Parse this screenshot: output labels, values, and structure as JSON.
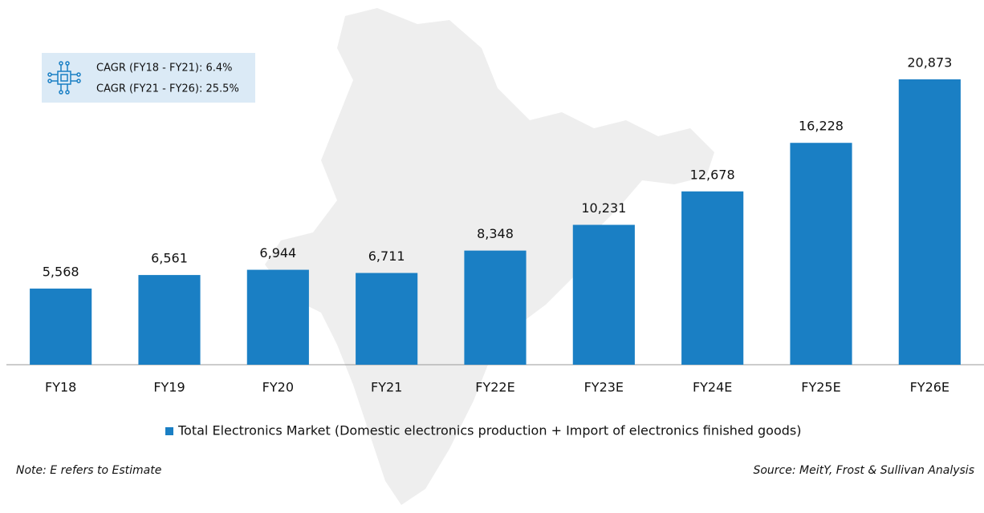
{
  "chart_data": {
    "type": "bar",
    "categories": [
      "FY18",
      "FY19",
      "FY20",
      "FY21",
      "FY22E",
      "FY23E",
      "FY24E",
      "FY25E",
      "FY26E"
    ],
    "series": [
      {
        "name": "Total Electronics Market (Domestic electronics production + Import of electronics finished goods)",
        "color": "#1a7fc4",
        "values": [
          5568,
          6561,
          6944,
          6711,
          8348,
          10231,
          12678,
          16228,
          20873
        ],
        "value_labels": [
          "5,568",
          "6,561",
          "6,944",
          "6,711",
          "8,348",
          "10,231",
          "12,678",
          "16,228",
          "20,873"
        ]
      }
    ],
    "annotations": [
      "CAGR (FY18 - FY21): 6.4%",
      "CAGR (FY21 - FY26): 25.5%"
    ],
    "note": "Note: E refers to Estimate",
    "source": "Source: MeitY, Frost & Sullivan Analysis"
  }
}
